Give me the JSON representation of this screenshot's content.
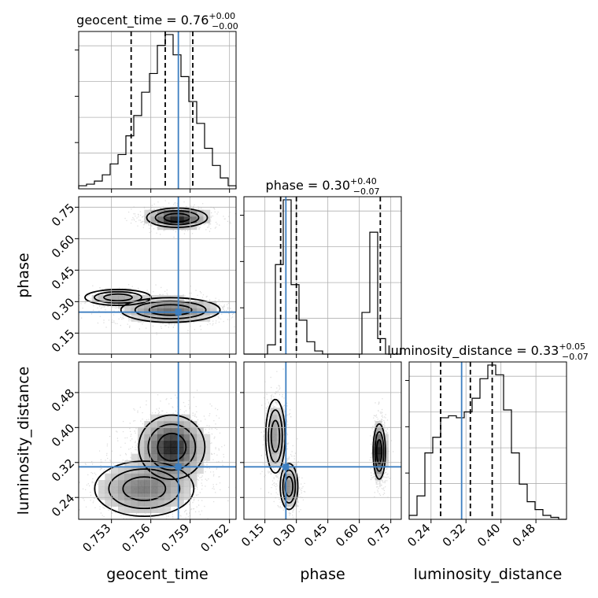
{
  "chart_data": {
    "type": "corner",
    "parameters": [
      "geocent_time",
      "phase",
      "luminosity_distance"
    ],
    "truths": {
      "geocent_time": 0.7581,
      "phase": 0.25,
      "luminosity_distance": 0.31
    },
    "truth_color": "#3d7fc1",
    "titles": [
      {
        "param": "geocent_time",
        "text": "geocent_time = 0.76",
        "sup": "+0.00",
        "sub": "−0.00"
      },
      {
        "param": "phase",
        "text": "phase = 0.30",
        "sup": "+0.40",
        "sub": "−0.07"
      },
      {
        "param": "luminosity_distance",
        "text": "luminosity_distance = 0.33",
        "sup": "+0.05",
        "sub": "−0.07"
      }
    ],
    "axes": {
      "geocent_time": {
        "range": [
          0.7505,
          0.7625
        ],
        "ticks": [
          0.753,
          0.756,
          0.759,
          0.762
        ],
        "tick_labels": [
          "0.753",
          "0.756",
          "0.759",
          "0.762"
        ],
        "label": "geocent_time"
      },
      "phase": {
        "range": [
          0.05,
          0.8
        ],
        "ticks": [
          0.15,
          0.3,
          0.45,
          0.6,
          0.75
        ],
        "tick_labels": [
          "0.15",
          "0.30",
          "0.45",
          "0.60",
          "0.75"
        ],
        "label": "phase"
      },
      "luminosity_distance": {
        "range": [
          0.19,
          0.55
        ],
        "ticks": [
          0.24,
          0.32,
          0.4,
          0.48
        ],
        "tick_labels": [
          "0.24",
          "0.32",
          "0.40",
          "0.48"
        ],
        "label": "luminosity_distance"
      }
    },
    "histograms": [
      {
        "param": "geocent_time",
        "bin_edges": [
          0.7505,
          0.7511,
          0.7517,
          0.7523,
          0.7529,
          0.7535,
          0.7541,
          0.7547,
          0.7553,
          0.7559,
          0.7565,
          0.7571,
          0.7577,
          0.7583,
          0.7589,
          0.7595,
          0.7601,
          0.7607,
          0.7613,
          0.7619,
          0.7625
        ],
        "counts": [
          2,
          3,
          5,
          9,
          16,
          22,
          34,
          47,
          62,
          74,
          92,
          99,
          86,
          72,
          56,
          42,
          26,
          15,
          7,
          2
        ],
        "quantiles": [
          0.7545,
          0.7571,
          0.7592
        ]
      },
      {
        "param": "phase",
        "bin_edges": [
          0.05,
          0.0875,
          0.125,
          0.1625,
          0.2,
          0.2375,
          0.275,
          0.3125,
          0.35,
          0.3875,
          0.425,
          0.4625,
          0.5,
          0.5375,
          0.575,
          0.6125,
          0.65,
          0.6875,
          0.725,
          0.7625,
          0.8
        ],
        "counts": [
          0,
          0,
          0,
          6,
          58,
          100,
          45,
          22,
          8,
          2,
          0,
          0,
          0,
          0,
          0,
          27,
          79,
          10,
          0,
          0
        ],
        "quantiles": [
          0.225,
          0.3,
          0.7
        ]
      },
      {
        "param": "luminosity_distance",
        "bin_edges": [
          0.19,
          0.208,
          0.226,
          0.244,
          0.262,
          0.28,
          0.298,
          0.316,
          0.334,
          0.352,
          0.37,
          0.388,
          0.406,
          0.424,
          0.442,
          0.46,
          0.478,
          0.496,
          0.514,
          0.532,
          0.55
        ],
        "counts": [
          2,
          12,
          34,
          42,
          52,
          53,
          52,
          55,
          62,
          72,
          79,
          74,
          56,
          34,
          18,
          9,
          5,
          2,
          1,
          0
        ],
        "quantiles": [
          0.262,
          0.33,
          0.38
        ]
      }
    ],
    "joint": [
      {
        "x": "geocent_time",
        "y": "phase",
        "modes": [
          {
            "x": 0.758,
            "y": 0.7,
            "sx": 0.0011,
            "sy": 0.022,
            "weight": 0.42
          },
          {
            "x": 0.7575,
            "y": 0.26,
            "sx": 0.0018,
            "sy": 0.028,
            "weight": 0.48
          },
          {
            "x": 0.7535,
            "y": 0.32,
            "sx": 0.0012,
            "sy": 0.018,
            "weight": 0.1
          }
        ]
      },
      {
        "x": "geocent_time",
        "y": "luminosity_distance",
        "modes": [
          {
            "x": 0.7576,
            "y": 0.355,
            "sx": 0.0012,
            "sy": 0.035,
            "weight": 0.6
          },
          {
            "x": 0.7555,
            "y": 0.26,
            "sx": 0.0018,
            "sy": 0.03,
            "weight": 0.4
          }
        ]
      },
      {
        "x": "phase",
        "y": "luminosity_distance",
        "modes": [
          {
            "x": 0.2,
            "y": 0.38,
            "sx": 0.022,
            "sy": 0.04,
            "weight": 0.33
          },
          {
            "x": 0.265,
            "y": 0.265,
            "sx": 0.02,
            "sy": 0.025,
            "weight": 0.25
          },
          {
            "x": 0.695,
            "y": 0.345,
            "sx": 0.014,
            "sy": 0.03,
            "weight": 0.42
          }
        ]
      }
    ]
  }
}
